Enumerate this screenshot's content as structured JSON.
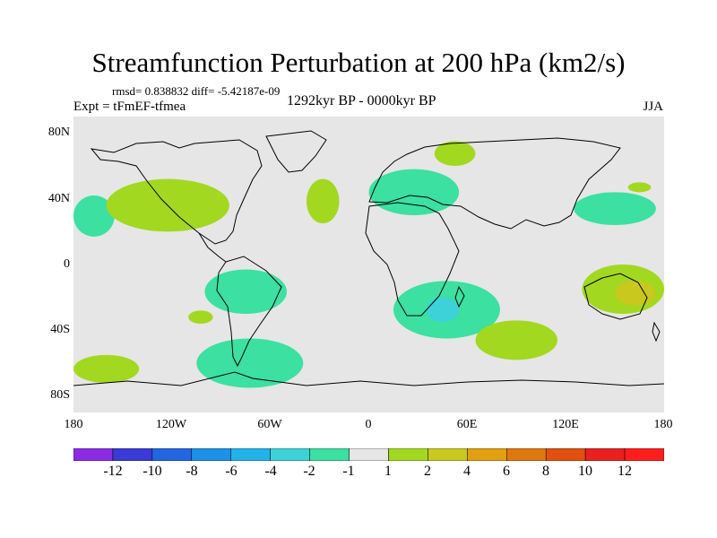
{
  "title": "Streamfunction Perturbation at 200 hPa (km2/s)",
  "stats": "rmsd= 0.838832 diff= -5.42187e-09",
  "experiment": "Expt = tFmEF-tfmea",
  "period": "1292kyr BP - 0000kyr BP",
  "season": "JJA",
  "chart_data": {
    "type": "heatmap",
    "title": "Streamfunction Perturbation at 200 hPa (km2/s)",
    "x_range": [
      -180,
      180
    ],
    "y_range": [
      -90,
      90
    ],
    "x_ticks": [
      {
        "value": -180,
        "label": "180"
      },
      {
        "value": -120,
        "label": "120W"
      },
      {
        "value": -60,
        "label": "60W"
      },
      {
        "value": 0,
        "label": "0"
      },
      {
        "value": 60,
        "label": "60E"
      },
      {
        "value": 120,
        "label": "120E"
      },
      {
        "value": 180,
        "label": "180"
      }
    ],
    "y_ticks": [
      {
        "value": 80,
        "label": "80N"
      },
      {
        "value": 40,
        "label": "40N"
      },
      {
        "value": 0,
        "label": "0"
      },
      {
        "value": -40,
        "label": "40S"
      },
      {
        "value": -80,
        "label": "80S"
      }
    ],
    "levels": [
      -12,
      -10,
      -8,
      -6,
      -4,
      -2,
      -1,
      1,
      2,
      4,
      6,
      8,
      10,
      12
    ],
    "colors": [
      "#8a2be2",
      "#3a3ad6",
      "#2266e0",
      "#1e90e8",
      "#22b2e8",
      "#3cd2d8",
      "#3ce0a0",
      "#e6e6e6",
      "#a2d820",
      "#c8c81e",
      "#e0a010",
      "#e07810",
      "#e05010",
      "#e82020",
      "#ff1e1e"
    ],
    "regions": [
      {
        "name": "N Pacific",
        "sign": "negative",
        "bin": "-2 to -1",
        "lon": [
          -180,
          -155
        ],
        "lat": [
          17,
          42
        ]
      },
      {
        "name": "E Pacific",
        "sign": "negative",
        "bin": "-2 to -1",
        "lon": [
          -100,
          -50
        ],
        "lat": [
          -30,
          -3
        ]
      },
      {
        "name": "S Pacific",
        "sign": "negative",
        "bin": "-2 to -1",
        "lon": [
          -105,
          -40
        ],
        "lat": [
          -75,
          -45
        ]
      },
      {
        "name": "Europe",
        "sign": "negative",
        "bin": "-2 to -1",
        "lon": [
          0,
          55
        ],
        "lat": [
          30,
          58
        ]
      },
      {
        "name": "S Africa",
        "sign": "negative",
        "bin": "-2 to -1",
        "lon": [
          15,
          80
        ],
        "lat": [
          -45,
          -10
        ]
      },
      {
        "name": "S Africa core",
        "sign": "negative",
        "bin": "-4 to -2",
        "lon": [
          35,
          55
        ],
        "lat": [
          -35,
          -20
        ]
      },
      {
        "name": "NW Pacific",
        "sign": "negative",
        "bin": "-2 to -1",
        "lon": [
          125,
          175
        ],
        "lat": [
          24,
          44
        ]
      },
      {
        "name": "N America",
        "sign": "positive",
        "bin": "1 to 2",
        "lon": [
          -160,
          -85
        ],
        "lat": [
          20,
          52
        ]
      },
      {
        "name": "N Atlantic",
        "sign": "positive",
        "bin": "1 to 2",
        "lon": [
          -38,
          -18
        ],
        "lat": [
          25,
          52
        ]
      },
      {
        "name": "Arctic Russia",
        "sign": "positive",
        "bin": "1 to 2",
        "lon": [
          40,
          65
        ],
        "lat": [
          60,
          75
        ]
      },
      {
        "name": "SW Pacific",
        "sign": "positive",
        "bin": "1 to 2",
        "lon": [
          -180,
          -140
        ],
        "lat": [
          -72,
          -55
        ]
      },
      {
        "name": "S Pacific small",
        "sign": "positive",
        "bin": "1 to 2",
        "lon": [
          -110,
          -95
        ],
        "lat": [
          -36,
          -28
        ]
      },
      {
        "name": "S Indian",
        "sign": "positive",
        "bin": "1 to 2",
        "lon": [
          65,
          115
        ],
        "lat": [
          -58,
          -34
        ]
      },
      {
        "name": "Australia",
        "sign": "positive",
        "bin": "1 to 2",
        "lon": [
          130,
          180
        ],
        "lat": [
          -30,
          0
        ]
      },
      {
        "name": "Australia core",
        "sign": "positive",
        "bin": "2 to 4",
        "lon": [
          150,
          175
        ],
        "lat": [
          -25,
          -10
        ]
      },
      {
        "name": "N Pacific small",
        "sign": "positive",
        "bin": "1 to 2",
        "lon": [
          158,
          172
        ],
        "lat": [
          44,
          50
        ]
      }
    ]
  },
  "colorbar_labels": [
    "-12",
    "-10",
    "-8",
    "-6",
    "-4",
    "-2",
    "-1",
    "1",
    "2",
    "4",
    "6",
    "8",
    "10",
    "12"
  ]
}
